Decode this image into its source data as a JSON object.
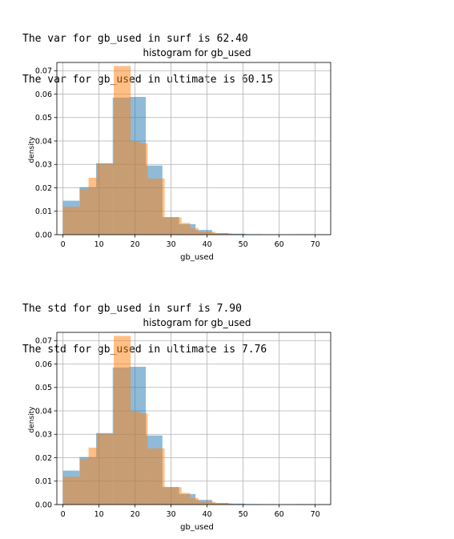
{
  "outputs": {
    "var_surf": "The var for gb_used in surf is 62.40",
    "var_ultimate": "The var for gb_used in ultimate is 60.15",
    "std_surf": "The std for gb_used in surf is 7.90",
    "std_ultimate": "The std for gb_used in ultimate is 7.76"
  },
  "colors": {
    "surf": "#1f77b4",
    "ultimate": "#ff7f0e",
    "grid": "#b0b0b0"
  },
  "chart_data": [
    {
      "type": "histogram",
      "title": "histogram for gb_used",
      "xlabel": "gb_used",
      "ylabel": "density",
      "xlim": [
        -1.7,
        74.3
      ],
      "ylim": [
        0,
        0.0735
      ],
      "xticks": [
        0,
        10,
        20,
        30,
        40,
        50,
        60,
        70
      ],
      "yticks": [
        0.0,
        0.01,
        0.02,
        0.03,
        0.04,
        0.05,
        0.06,
        0.07
      ],
      "ytick_labels": [
        "0.00",
        "0.01",
        "0.02",
        "0.03",
        "0.04",
        "0.05",
        "0.06",
        "0.07"
      ],
      "grid": true,
      "alpha": 0.5,
      "series": [
        {
          "name": "surf",
          "edges": [
            0,
            4.6,
            9.2,
            13.8,
            18.4,
            23.0,
            27.6,
            32.2,
            36.8,
            41.4,
            46.0,
            50.6,
            55.2,
            59.8,
            64.4,
            69.0,
            70
          ],
          "values": [
            0.0145,
            0.0203,
            0.0305,
            0.0585,
            0.0588,
            0.0295,
            0.0075,
            0.0045,
            0.002,
            0.0007,
            0.0004,
            0.0002,
            0.0,
            0.0,
            0.0002,
            0.0002
          ]
        },
        {
          "name": "ultimate",
          "edges": [
            0,
            4.7,
            7.1,
            9.4,
            14.1,
            18.8,
            21.2,
            23.5,
            28.2,
            32.9,
            35.3,
            37.6,
            42.3,
            47.0
          ],
          "values": [
            0.0119,
            0.0195,
            0.0243,
            0.0302,
            0.072,
            0.04,
            0.039,
            0.024,
            0.0074,
            0.005,
            0.0028,
            0.0012,
            0.0005
          ]
        }
      ]
    },
    {
      "type": "histogram",
      "title": "histogram for gb_used",
      "xlabel": "gb_used",
      "ylabel": "density",
      "xlim": [
        -1.7,
        74.3
      ],
      "ylim": [
        0,
        0.0735
      ],
      "xticks": [
        0,
        10,
        20,
        30,
        40,
        50,
        60,
        70
      ],
      "yticks": [
        0.0,
        0.01,
        0.02,
        0.03,
        0.04,
        0.05,
        0.06,
        0.07
      ],
      "ytick_labels": [
        "0.00",
        "0.01",
        "0.02",
        "0.03",
        "0.04",
        "0.05",
        "0.06",
        "0.07"
      ],
      "grid": true,
      "alpha": 0.5,
      "series": [
        {
          "name": "surf",
          "edges": [
            0,
            4.6,
            9.2,
            13.8,
            18.4,
            23.0,
            27.6,
            32.2,
            36.8,
            41.4,
            46.0,
            50.6,
            55.2,
            59.8,
            64.4,
            69.0,
            70
          ],
          "values": [
            0.0145,
            0.0203,
            0.0305,
            0.0585,
            0.0588,
            0.0295,
            0.0075,
            0.0045,
            0.002,
            0.0007,
            0.0004,
            0.0002,
            0.0,
            0.0,
            0.0002,
            0.0002
          ]
        },
        {
          "name": "ultimate",
          "edges": [
            0,
            4.7,
            7.1,
            9.4,
            14.1,
            18.8,
            21.2,
            23.5,
            28.2,
            32.9,
            35.3,
            37.6,
            42.3,
            47.0
          ],
          "values": [
            0.0119,
            0.0195,
            0.0243,
            0.0302,
            0.072,
            0.04,
            0.039,
            0.024,
            0.0074,
            0.005,
            0.0028,
            0.0012,
            0.0005
          ]
        }
      ]
    }
  ]
}
